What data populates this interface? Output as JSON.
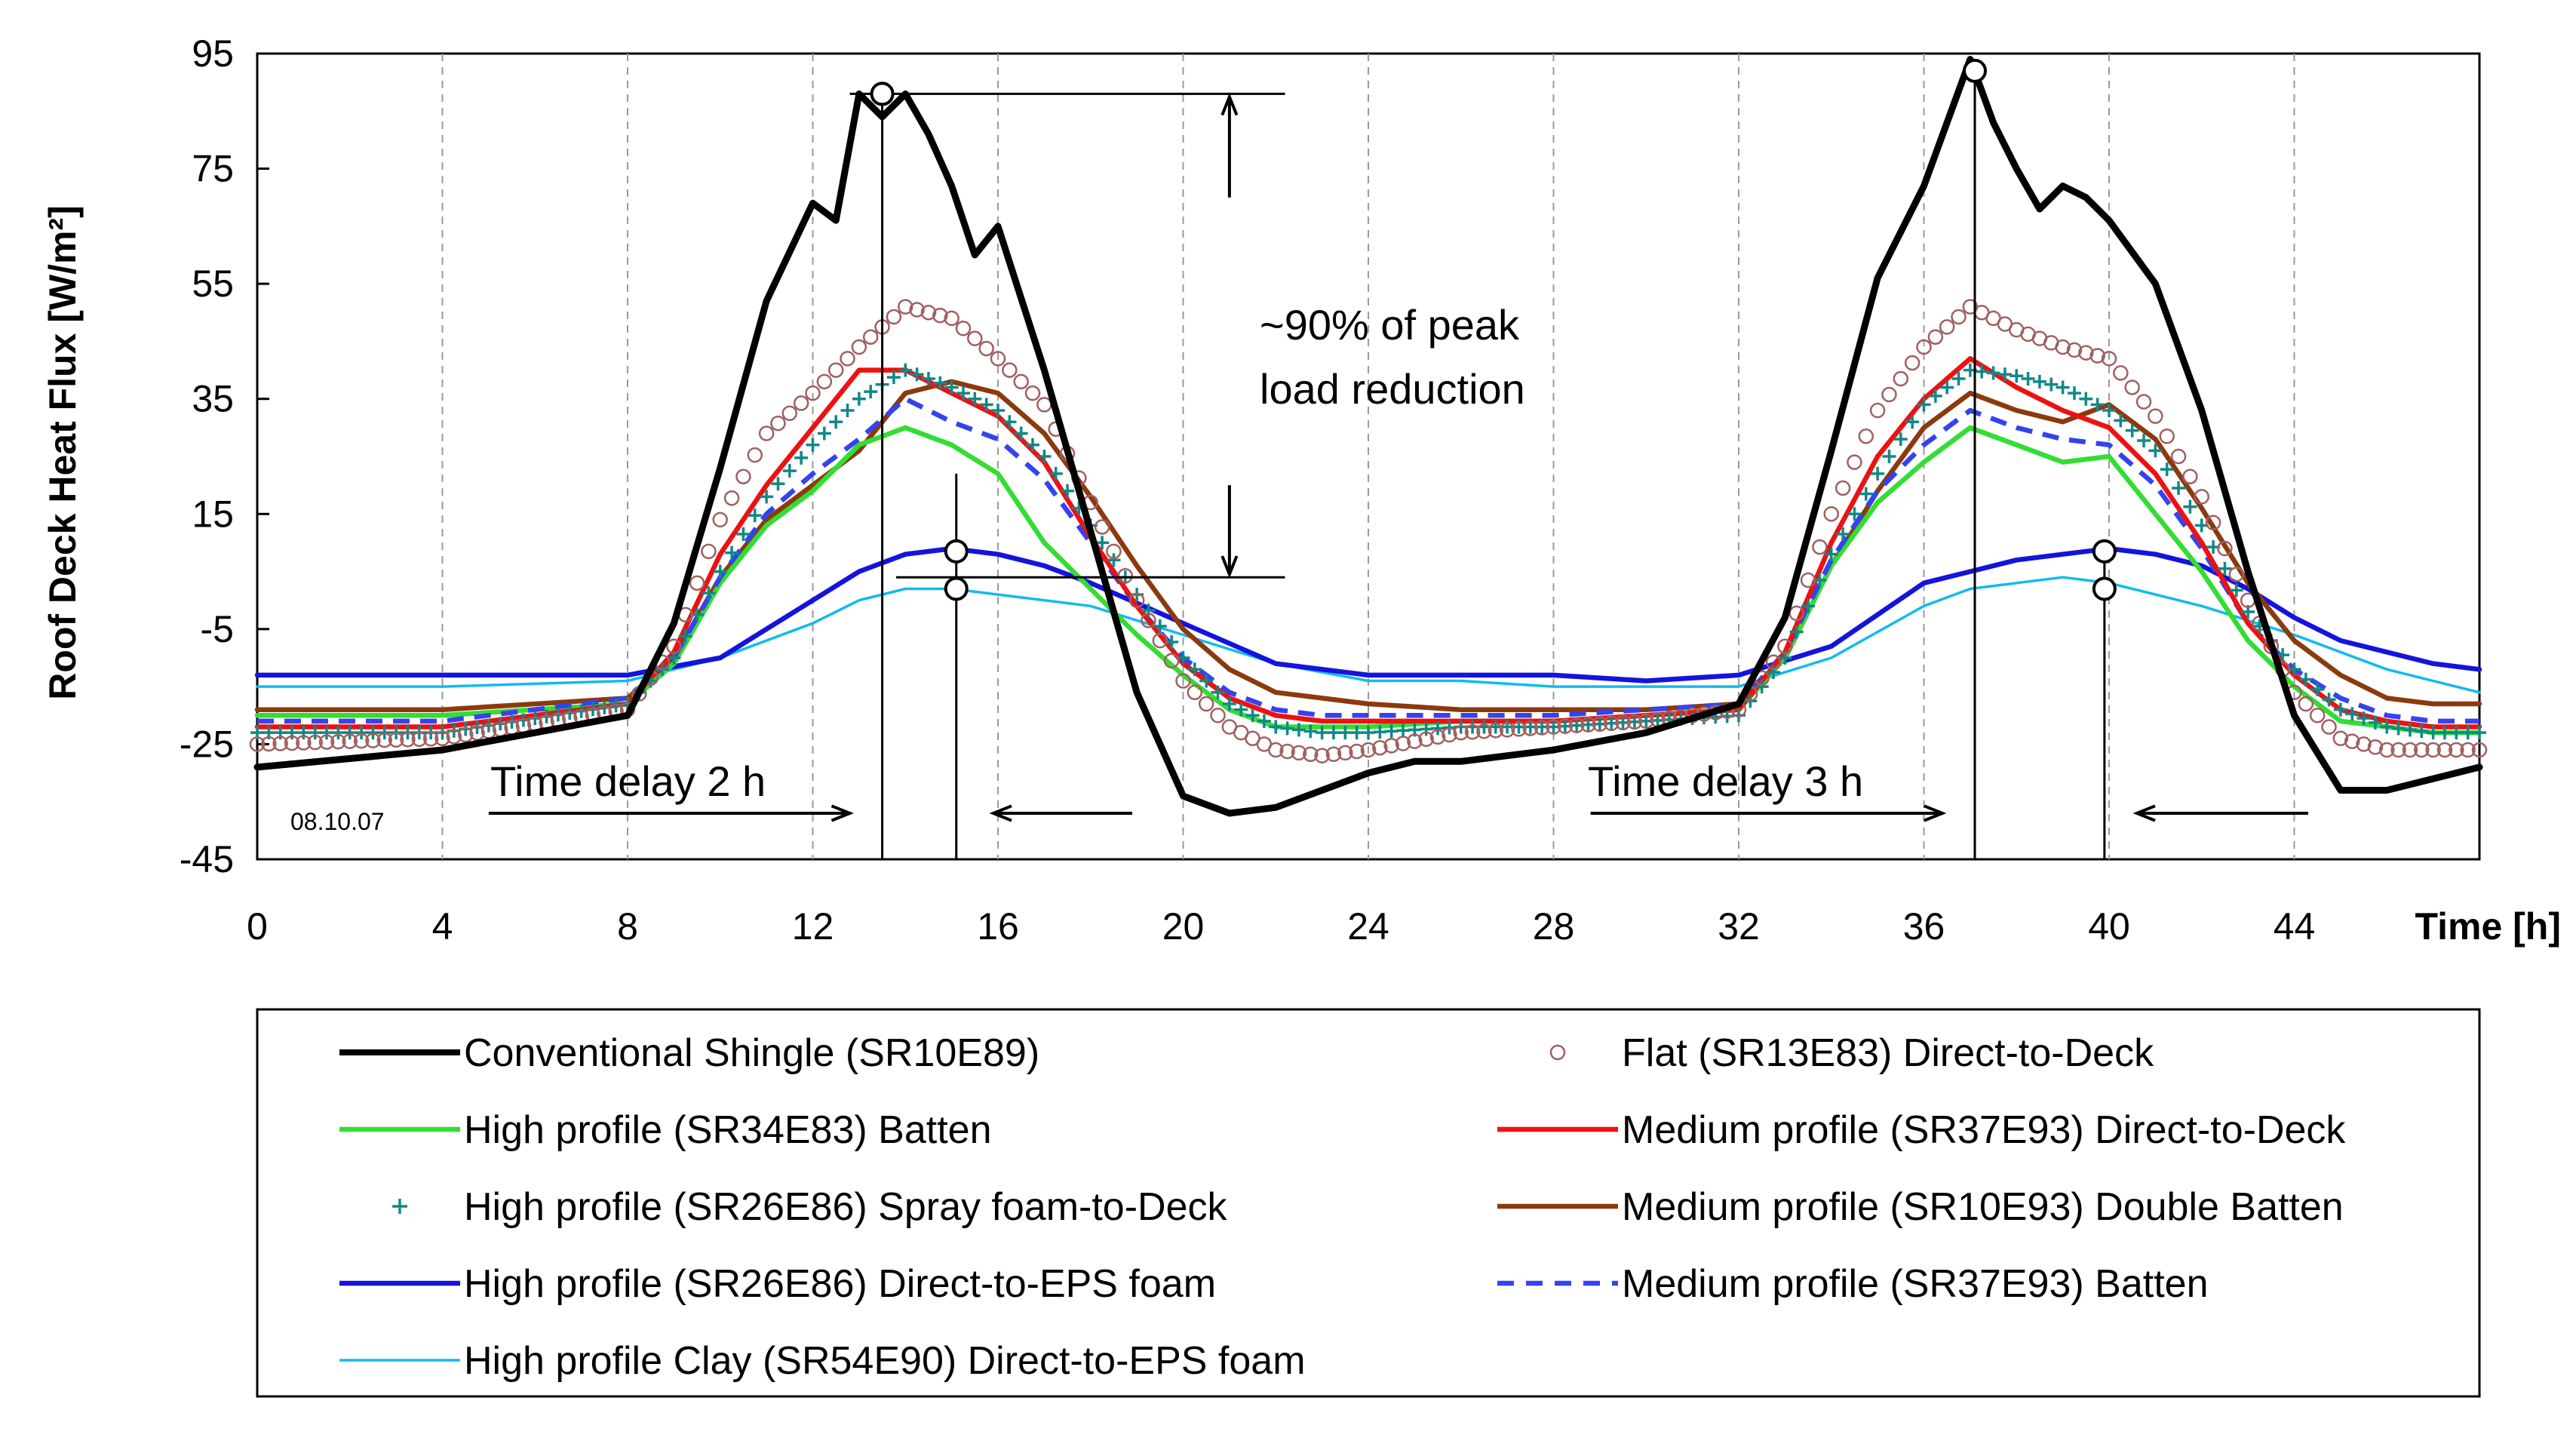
{
  "chart_data": {
    "type": "line",
    "title": "",
    "xlabel": "Time [h]",
    "ylabel": "Roof Deck Heat Flux [W/m²]",
    "xlim": [
      0,
      48
    ],
    "ylim": [
      -45,
      95
    ],
    "xticks": [
      0,
      4,
      8,
      12,
      16,
      20,
      24,
      28,
      32,
      36,
      40,
      44
    ],
    "yticks": [
      95,
      75,
      55,
      35,
      15,
      -5,
      -25,
      -45
    ],
    "grid": "vertical dashed",
    "legend_position": "bottom",
    "date_label": "08.10.07",
    "annotations": {
      "peak_reduction": [
        "~90% of peak",
        "load reduction"
      ],
      "delay_day1": "Time delay 2 h",
      "delay_day2": "Time delay 3 h"
    },
    "series": [
      {
        "name": "Conventional Shingle (SR10E89)",
        "color": "#000000",
        "style": "thick",
        "x": [
          0,
          4,
          8,
          9,
          10,
          11,
          12,
          12.5,
          13,
          13.5,
          14,
          14.5,
          15,
          15.5,
          16,
          17,
          18,
          19,
          20,
          21,
          22,
          23,
          24,
          25,
          26,
          28,
          30,
          32,
          33,
          34,
          35,
          36,
          36.5,
          37,
          37.5,
          38,
          38.5,
          39,
          39.5,
          40,
          41,
          42,
          43,
          44,
          45,
          46,
          47,
          48
        ],
        "y": [
          -29,
          -26,
          -20,
          -4,
          23,
          52,
          69,
          66,
          88,
          84,
          88,
          81,
          72,
          60,
          65,
          40,
          12,
          -16,
          -34,
          -37,
          -36,
          -33,
          -30,
          -28,
          -28,
          -26,
          -23,
          -18,
          -3,
          26,
          56,
          72,
          83,
          94,
          83,
          75,
          68,
          72,
          70,
          66,
          55,
          33,
          5,
          -20,
          -33,
          -33,
          -31,
          -29
        ]
      },
      {
        "name": "Flat (SR13E83) Direct-to-Deck",
        "color": "#a06060",
        "style": "circles",
        "x": [
          0,
          4,
          8,
          9,
          10,
          11,
          12,
          13,
          14,
          15,
          16,
          17,
          18,
          19,
          20,
          21,
          22,
          23,
          24,
          26,
          28,
          30,
          32,
          33,
          34,
          35,
          36,
          37,
          38,
          39,
          40,
          41,
          42,
          43,
          44,
          45,
          46,
          47,
          48
        ],
        "y": [
          -25,
          -24,
          -19,
          -8,
          14,
          29,
          36,
          44,
          51,
          49,
          42,
          34,
          17,
          0,
          -14,
          -22,
          -26,
          -27,
          -26,
          -23,
          -22,
          -21,
          -19,
          -8,
          15,
          33,
          44,
          51,
          47,
          44,
          42,
          32,
          18,
          0,
          -16,
          -24,
          -26,
          -26,
          -26
        ]
      },
      {
        "name": "High profile (SR34E83) Batten",
        "color": "#33dd33",
        "style": "line",
        "x": [
          0,
          4,
          8,
          9,
          10,
          11,
          12,
          13,
          14,
          15,
          16,
          17,
          18,
          19,
          20,
          21,
          22,
          23,
          24,
          26,
          28,
          30,
          32,
          33,
          34,
          35,
          36,
          37,
          38,
          39,
          40,
          41,
          42,
          43,
          44,
          45,
          46,
          47,
          48
        ],
        "y": [
          -20,
          -20,
          -18,
          -11,
          3,
          13,
          19,
          27,
          30,
          27,
          22,
          10,
          2,
          -6,
          -13,
          -19,
          -22,
          -22,
          -22,
          -21,
          -21,
          -20,
          -19,
          -10,
          6,
          17,
          24,
          30,
          27,
          24,
          25,
          15,
          5,
          -7,
          -15,
          -21,
          -22,
          -23,
          -23
        ]
      },
      {
        "name": "Medium profile (SR37E93) Direct-to-Deck",
        "color": "#ee1111",
        "style": "line",
        "x": [
          0,
          4,
          8,
          9,
          10,
          11,
          12,
          13,
          14,
          15,
          16,
          17,
          18,
          19,
          20,
          21,
          22,
          23,
          24,
          26,
          28,
          30,
          32,
          33,
          34,
          35,
          36,
          37,
          38,
          39,
          40,
          41,
          42,
          43,
          44,
          45,
          46,
          47,
          48
        ],
        "y": [
          -22,
          -22,
          -18,
          -9,
          8,
          20,
          30,
          40,
          40,
          36,
          32,
          24,
          11,
          -1,
          -11,
          -17,
          -20,
          -21,
          -21,
          -21,
          -21,
          -20,
          -19,
          -9,
          10,
          25,
          35,
          42,
          37,
          33,
          30,
          22,
          10,
          -4,
          -13,
          -19,
          -21,
          -22,
          -22
        ]
      },
      {
        "name": "High profile (SR26E86) Spray foam-to-Deck",
        "color": "#118888",
        "style": "plus",
        "x": [
          0,
          4,
          8,
          9,
          10,
          11,
          12,
          13,
          14,
          15,
          16,
          17,
          18,
          19,
          20,
          21,
          22,
          23,
          24,
          26,
          28,
          30,
          32,
          33,
          34,
          35,
          36,
          37,
          38,
          39,
          40,
          41,
          42,
          43,
          44,
          45,
          46,
          47,
          48
        ],
        "y": [
          -23,
          -23,
          -18,
          -10,
          5,
          18,
          27,
          35,
          40,
          37,
          33,
          25,
          13,
          1,
          -10,
          -18,
          -22,
          -23,
          -23,
          -22,
          -22,
          -21,
          -20,
          -10,
          8,
          22,
          34,
          40,
          39,
          37,
          33,
          26,
          13,
          -2,
          -12,
          -19,
          -22,
          -23,
          -23
        ]
      },
      {
        "name": "Medium profile (SR10E93) Double Batten",
        "color": "#8b3a0e",
        "style": "line",
        "x": [
          0,
          4,
          8,
          9,
          10,
          11,
          12,
          13,
          14,
          15,
          16,
          17,
          18,
          19,
          20,
          21,
          22,
          23,
          24,
          26,
          28,
          30,
          32,
          33,
          34,
          35,
          36,
          37,
          38,
          39,
          40,
          41,
          42,
          43,
          44,
          45,
          46,
          47,
          48
        ],
        "y": [
          -19,
          -19,
          -17,
          -10,
          4,
          14,
          20,
          26,
          36,
          38,
          36,
          29,
          18,
          6,
          -5,
          -12,
          -16,
          -17,
          -18,
          -19,
          -19,
          -19,
          -18,
          -10,
          6,
          19,
          30,
          36,
          33,
          31,
          34,
          28,
          16,
          3,
          -7,
          -13,
          -17,
          -18,
          -18
        ]
      },
      {
        "name": "High profile (SR26E86) Direct-to-EPS foam",
        "color": "#1414dd",
        "style": "line",
        "x": [
          0,
          4,
          8,
          10,
          12,
          13,
          14,
          15,
          16,
          17,
          18,
          20,
          22,
          24,
          26,
          28,
          30,
          32,
          34,
          36,
          37,
          38,
          39,
          40,
          41,
          42,
          43,
          44,
          45,
          46,
          47,
          48
        ],
        "y": [
          -13,
          -13,
          -13,
          -10,
          0,
          5,
          8,
          9,
          8,
          6,
          3,
          -4,
          -11,
          -13,
          -13,
          -13,
          -14,
          -13,
          -8,
          3,
          5,
          7,
          8,
          9,
          8,
          6,
          2,
          -3,
          -7,
          -9,
          -11,
          -12
        ]
      },
      {
        "name": "Medium profile (SR37E93) Batten",
        "color": "#3344ee",
        "style": "dashed",
        "x": [
          0,
          4,
          8,
          9,
          10,
          11,
          12,
          13,
          14,
          15,
          16,
          17,
          18,
          19,
          20,
          21,
          22,
          23,
          24,
          26,
          28,
          30,
          32,
          33,
          34,
          35,
          36,
          37,
          38,
          39,
          40,
          41,
          42,
          43,
          44,
          45,
          46,
          47,
          48
        ],
        "y": [
          -21,
          -21,
          -17,
          -10,
          4,
          15,
          22,
          28,
          35,
          31,
          28,
          21,
          10,
          -1,
          -10,
          -16,
          -19,
          -20,
          -20,
          -20,
          -20,
          -19,
          -18,
          -9,
          7,
          19,
          27,
          33,
          30,
          28,
          27,
          20,
          9,
          -4,
          -12,
          -17,
          -20,
          -21,
          -21
        ]
      },
      {
        "name": "High profile Clay (SR54E90) Direct-to-EPS foam",
        "color": "#11bbee",
        "style": "thin",
        "x": [
          0,
          4,
          8,
          10,
          12,
          13,
          14,
          15,
          16,
          18,
          20,
          22,
          24,
          26,
          28,
          30,
          32,
          34,
          36,
          37,
          38,
          39,
          40,
          42,
          44,
          46,
          48
        ],
        "y": [
          -15,
          -15,
          -14,
          -10,
          -4,
          0,
          2,
          2,
          1,
          -1,
          -6,
          -11,
          -14,
          -14,
          -15,
          -15,
          -15,
          -10,
          -1,
          2,
          3,
          4,
          3,
          -1,
          -6,
          -12,
          -16
        ]
      }
    ]
  }
}
